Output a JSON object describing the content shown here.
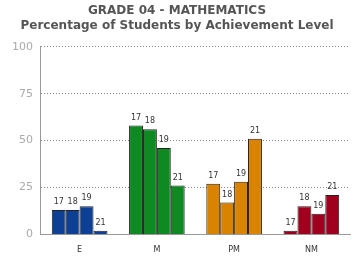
{
  "chart_data": {
    "type": "bar",
    "title": "GRADE 04 - MATHEMATICS",
    "subtitle": "Percentage of Students by Achievement Level",
    "categories": [
      "E",
      "M",
      "PM",
      "NM"
    ],
    "colors": [
      "#0d3f94",
      "#0f8a22",
      "#d98300",
      "#a0001e"
    ],
    "series": [
      {
        "name": "17",
        "values": [
          13,
          58,
          27,
          2
        ]
      },
      {
        "name": "18",
        "values": [
          13,
          56,
          17,
          15
        ]
      },
      {
        "name": "19",
        "values": [
          15,
          46,
          28,
          11
        ]
      },
      {
        "name": "21",
        "values": [
          2,
          26,
          51,
          21
        ]
      }
    ],
    "ylim": [
      0,
      100
    ],
    "yticks": [
      0,
      25,
      50,
      75,
      100
    ],
    "grid": true
  }
}
